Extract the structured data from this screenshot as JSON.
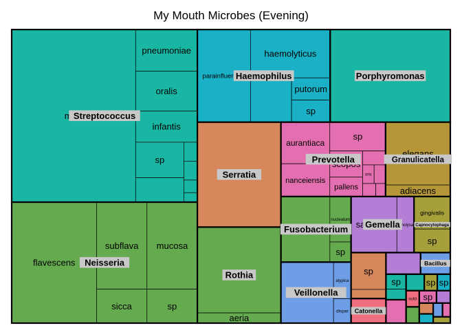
{
  "chart_data": {
    "type": "treemap",
    "title": "My Mouth Microbes (Evening)",
    "groups": [
      {
        "name": "Streptococcus",
        "color": "#19b6a4",
        "children": [
          {
            "name": "mitis",
            "value": 1000
          },
          {
            "name": "infantis",
            "value": 90
          },
          {
            "name": "pneumoniae",
            "value": 120
          },
          {
            "name": "oralis",
            "value": 115
          },
          {
            "name": "sp",
            "value": 80
          },
          {
            "name": "",
            "value": 55
          },
          {
            "name": "",
            "value": 12
          },
          {
            "name": "",
            "value": 12
          },
          {
            "name": "",
            "value": 8
          },
          {
            "name": "",
            "value": 6
          }
        ]
      },
      {
        "name": "Neisseria",
        "color": "#65aa4f",
        "children": [
          {
            "name": "flavescens",
            "value": 480
          },
          {
            "name": "subflava",
            "value": 205
          },
          {
            "name": "mucosa",
            "value": 205
          },
          {
            "name": "sicca",
            "value": 80
          },
          {
            "name": "sp",
            "value": 80
          }
        ]
      },
      {
        "name": "Haemophilus",
        "color": "#1ab0c6",
        "children": [
          {
            "name": "parainfluenzae",
            "value": 230
          },
          {
            "name": "haemolyticus",
            "value": 180
          },
          {
            "name": "",
            "value": 85
          },
          {
            "name": "putorum",
            "value": 40
          },
          {
            "name": "sp",
            "value": 40
          }
        ]
      },
      {
        "name": "Serratia",
        "color": "#d6885c",
        "children": [
          {
            "name": "",
            "value": 410
          }
        ]
      },
      {
        "name": "Porphyromonas",
        "color": "#19b6a4",
        "children": [
          {
            "name": "",
            "value": 520
          }
        ]
      },
      {
        "name": "Granulicatella",
        "color": "#b5973a",
        "children": [
          {
            "name": "elegans",
            "value": 190
          },
          {
            "name": "adiacens",
            "value": 35
          }
        ]
      },
      {
        "name": "Gemella",
        "color": "#b57ed6",
        "children": [
          {
            "name": "sanguinis",
            "value": 120
          },
          {
            "name": "haemolysans",
            "value": 45
          }
        ]
      },
      {
        "name": "Rothia",
        "color": "#65aa4f",
        "children": [
          {
            "name": "",
            "value": 335
          },
          {
            "name": "aeria",
            "value": 40
          }
        ]
      },
      {
        "name": "Fusobacterium",
        "color": "#65aa4f",
        "children": [
          {
            "name": "periodonticum",
            "value": 150
          },
          {
            "name": "nucleatum",
            "value": 45
          },
          {
            "name": "sp",
            "value": 20
          }
        ]
      },
      {
        "name": "Veillonella",
        "color": "#6e9fe6",
        "children": [
          {
            "name": "sp",
            "value": 150
          },
          {
            "name": "atypica",
            "value": 30
          },
          {
            "name": "dispar",
            "value": 20
          }
        ]
      },
      {
        "name": "Prevotella",
        "color": "#e36fb1",
        "children": [
          {
            "name": "aurantiaca",
            "value": 95
          },
          {
            "name": "nanceiensis",
            "value": 75
          },
          {
            "name": "sp",
            "value": 75
          },
          {
            "name": "scopos",
            "value": 40
          },
          {
            "name": "pallens",
            "value": 30
          },
          {
            "name": "oris",
            "value": 10
          },
          {
            "name": "",
            "value": 15
          },
          {
            "name": "",
            "value": 10
          },
          {
            "name": "",
            "value": 8
          },
          {
            "name": "",
            "value": 6
          }
        ]
      },
      {
        "name": "Capnocytophaga",
        "color": "#a5a03a",
        "children": [
          {
            "name": "gingivalis",
            "value": 55
          },
          {
            "name": "sp",
            "value": 40
          }
        ]
      },
      {
        "name": "",
        "color": "#d6885c",
        "children": [
          {
            "name": "sp",
            "value": 60
          },
          {
            "name": "",
            "value": 15
          }
        ]
      },
      {
        "name": "Catonella",
        "color": "#ef6f80",
        "children": [
          {
            "name": "",
            "value": 40
          }
        ]
      },
      {
        "name": "",
        "color": "#b57ed6",
        "children": [
          {
            "name": "",
            "value": 35
          }
        ]
      },
      {
        "name": "",
        "color": "#e36fb1",
        "children": [
          {
            "name": "",
            "value": 22
          }
        ]
      },
      {
        "name": "Bacillus",
        "color": "#6e9fe6",
        "children": [
          {
            "name": "",
            "value": 30
          }
        ]
      },
      {
        "name": "",
        "color": "#19b6a4",
        "children": [
          {
            "name": "sp",
            "value": 14
          },
          {
            "name": "",
            "value": 10
          }
        ]
      },
      {
        "name": "",
        "color": "#19b6a4",
        "children": [
          {
            "name": "",
            "value": 14
          }
        ]
      },
      {
        "name": "",
        "color": "#a5a03a",
        "children": [
          {
            "name": "sp",
            "value": 10
          }
        ]
      },
      {
        "name": "",
        "color": "#1ab0c6",
        "children": [
          {
            "name": "sp",
            "value": 10
          }
        ]
      },
      {
        "name": "",
        "color": "#ef6f80",
        "children": [
          {
            "name": "sulci",
            "value": 10
          }
        ]
      },
      {
        "name": "",
        "color": "#65aa4f",
        "children": [
          {
            "name": "",
            "value": 10
          }
        ]
      },
      {
        "name": "",
        "color": "#e36fb1",
        "children": [
          {
            "name": "sp",
            "value": 10
          }
        ]
      },
      {
        "name": "",
        "color": "#b57ed6",
        "children": [
          {
            "name": "",
            "value": 8
          }
        ]
      },
      {
        "name": "",
        "color": "#d6885c",
        "children": [
          {
            "name": "",
            "value": 7
          }
        ]
      },
      {
        "name": "",
        "color": "#1ab0c6",
        "children": [
          {
            "name": "",
            "value": 6
          }
        ]
      },
      {
        "name": "",
        "color": "#6e9fe6",
        "children": [
          {
            "name": "",
            "value": 6
          }
        ]
      },
      {
        "name": "",
        "color": "#e36fb1",
        "children": [
          {
            "name": "",
            "value": 5
          }
        ]
      },
      {
        "name": "",
        "color": "#a5a03a",
        "children": [
          {
            "name": "",
            "value": 5
          }
        ]
      }
    ]
  }
}
